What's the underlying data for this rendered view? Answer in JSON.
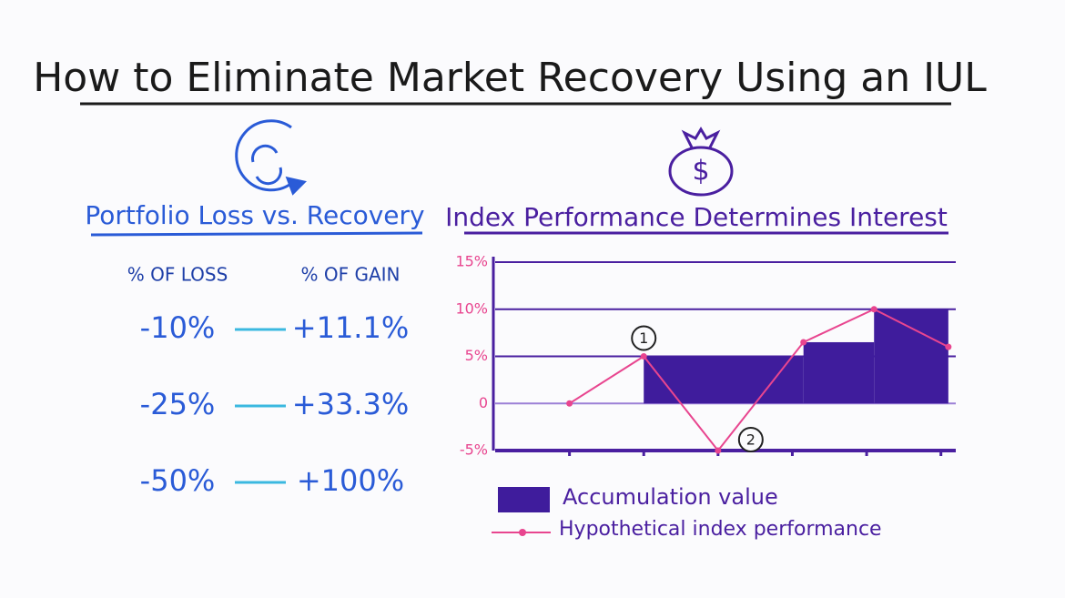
{
  "title": "How to Eliminate Market Recovery Using an IUL",
  "left_panel": {
    "heading": "Portfolio Loss vs. Recovery",
    "columns": [
      "% OF LOSS",
      "% OF GAIN"
    ],
    "rows": [
      [
        "-10%",
        "+11.1%"
      ],
      [
        "-25%",
        "+33.3%"
      ],
      [
        "-50%",
        "+100%"
      ]
    ]
  },
  "chart_data": {
    "type": "line",
    "title": "Index Performance Determines Interest",
    "xlim": [
      0,
      6.2
    ],
    "xticks": [
      1,
      2,
      3,
      4,
      5,
      6
    ],
    "ylim": [
      -5,
      15
    ],
    "yticks": [
      {
        "value": -5,
        "label": "-5%"
      },
      0,
      {
        "value": 5,
        "label": "5%"
      },
      {
        "value": 10,
        "label": "10%"
      },
      {
        "value": 15,
        "label": "15%"
      }
    ],
    "grid": true,
    "series": [
      {
        "name": "Accumulation value",
        "color": "#3f1c9c",
        "segments": [
          {
            "start": 2,
            "end": 4.15,
            "value": 5
          },
          {
            "start": 4.15,
            "end": 5.1,
            "value": 6.5
          },
          {
            "start": 5.1,
            "end": 6.1,
            "value": 10
          }
        ]
      },
      {
        "name": "Hypothetical index performance",
        "color": "#e8458f",
        "x": [
          1,
          2,
          3,
          4.15,
          5.1,
          6.1
        ],
        "values": [
          0,
          5,
          -5,
          6.5,
          10,
          6
        ]
      }
    ],
    "annotations": [
      {
        "text": "1",
        "x": 2,
        "y": 5
      },
      {
        "text": "2",
        "x": 3,
        "y": -5
      }
    ]
  }
}
